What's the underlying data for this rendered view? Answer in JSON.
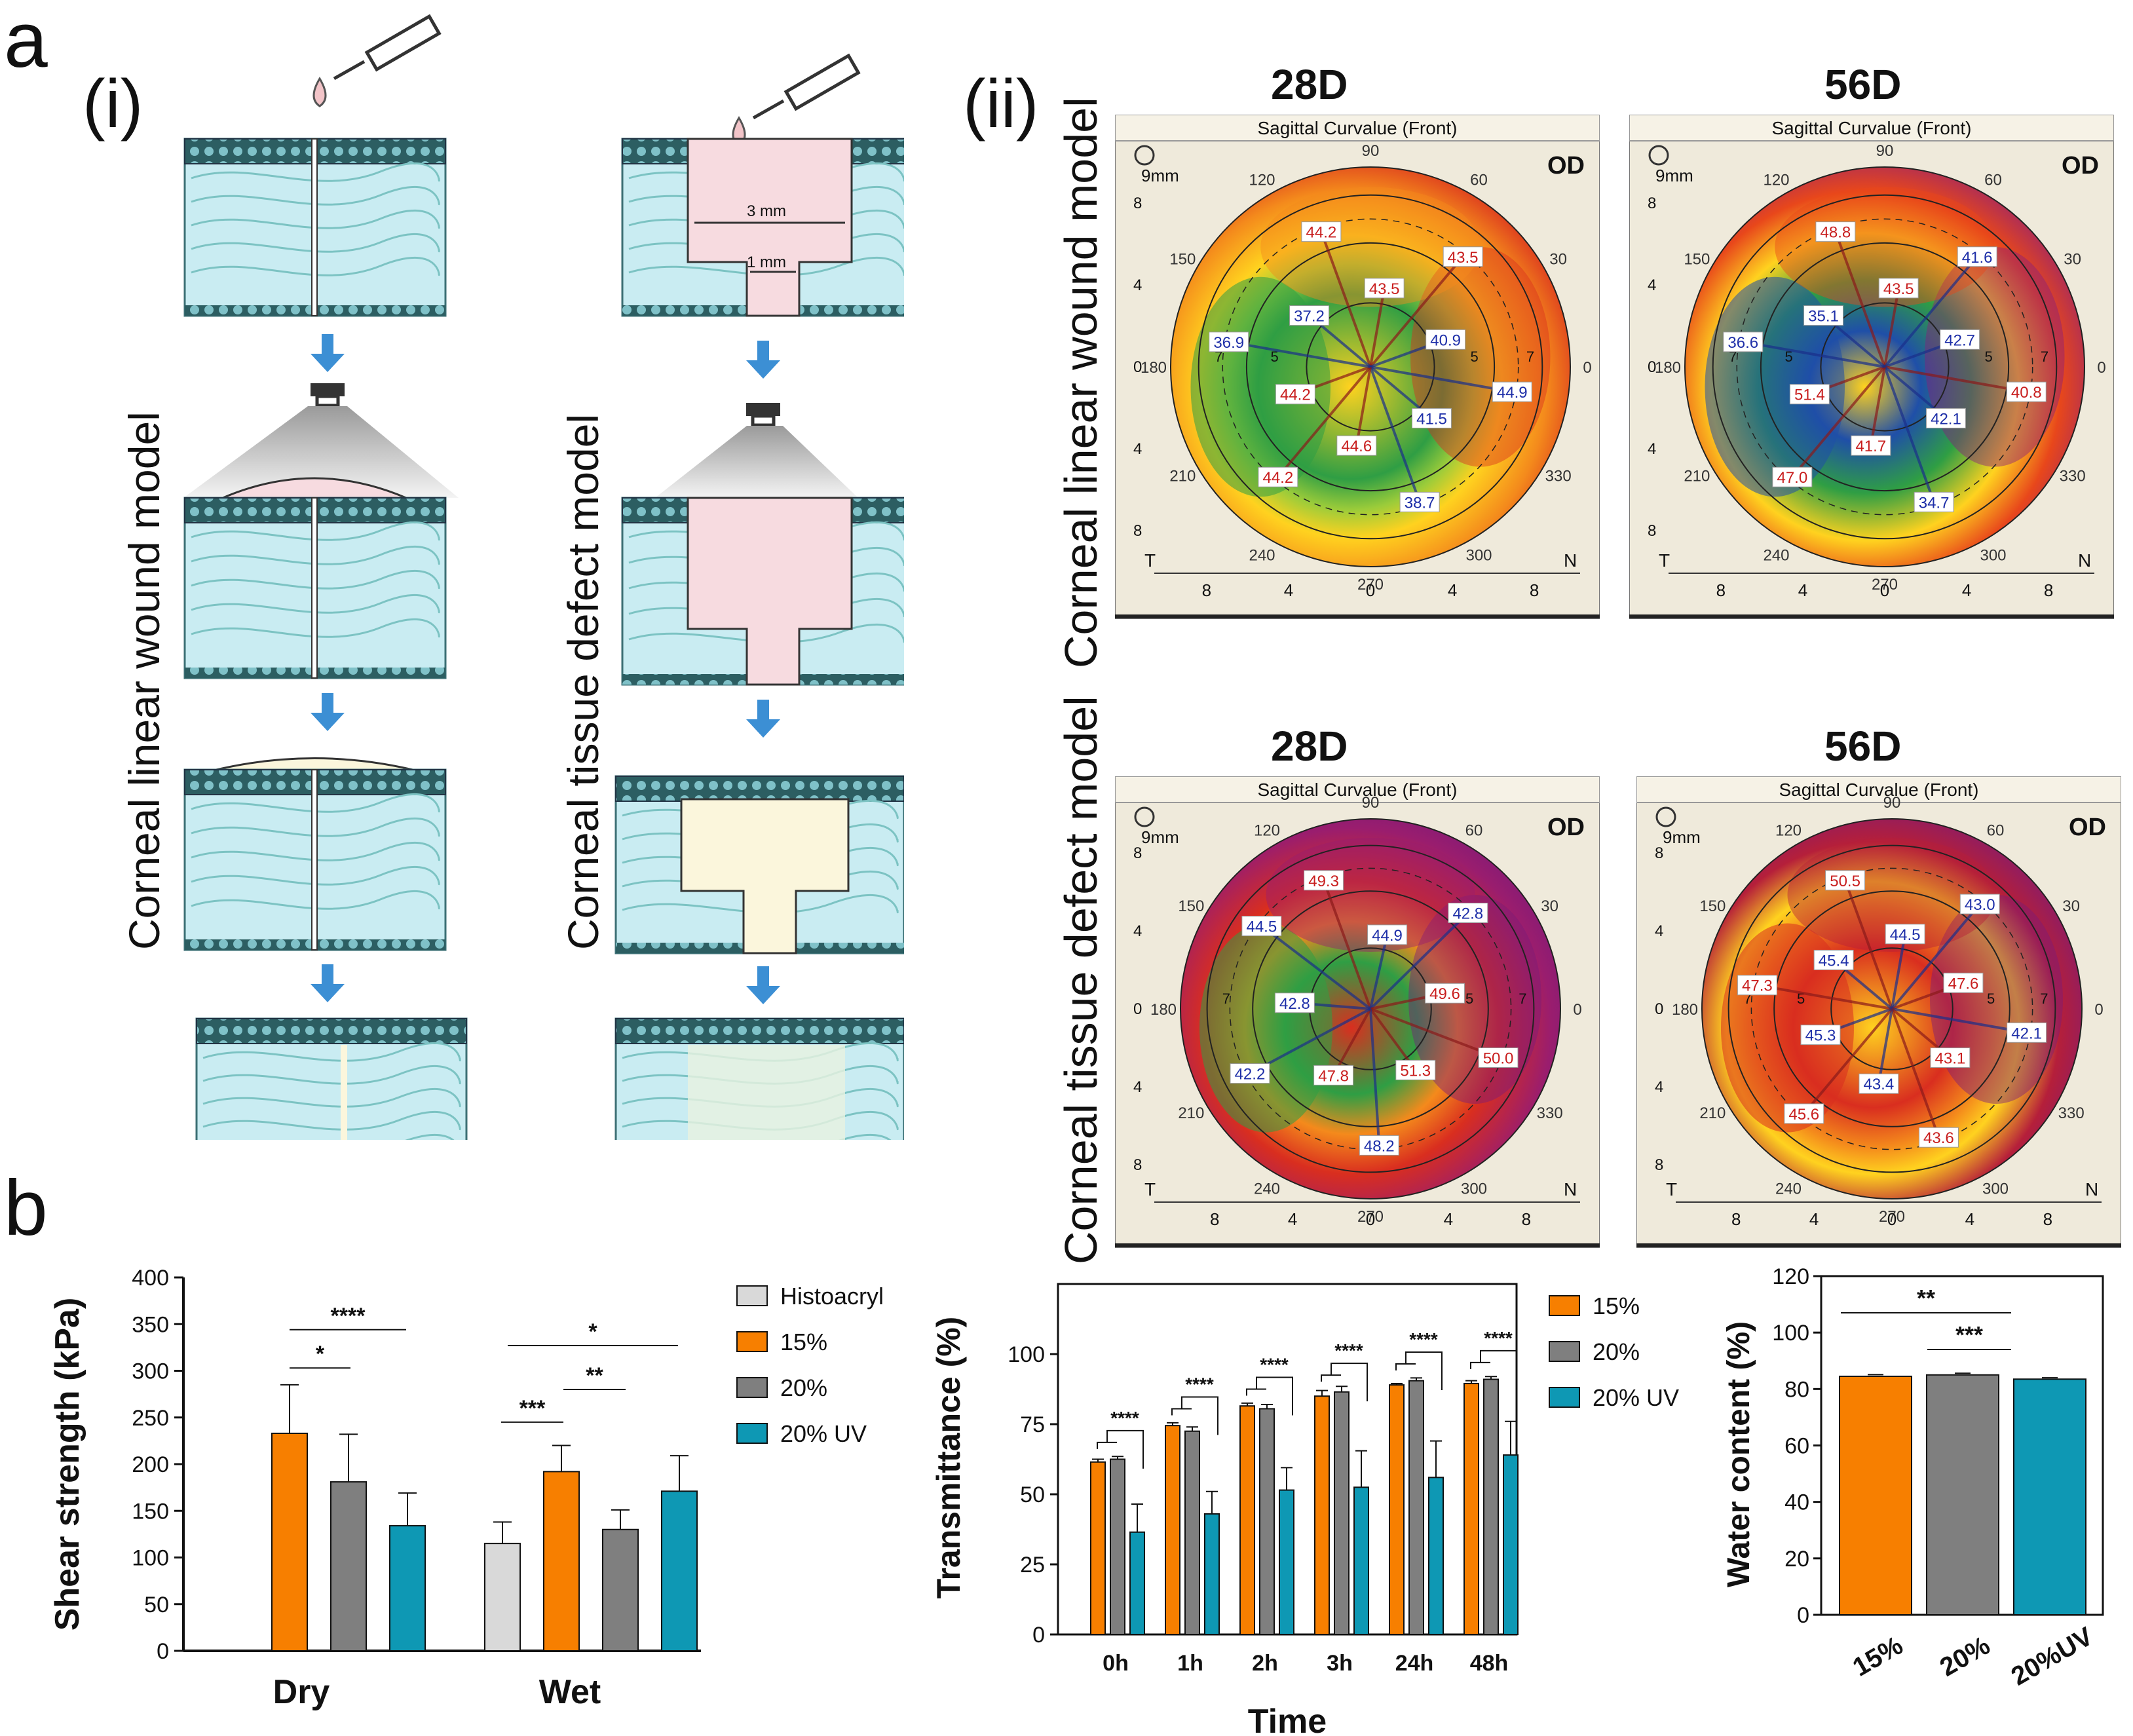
{
  "panels": {
    "a": "a",
    "b": "b",
    "i": "(i)",
    "ii": "(ii)"
  },
  "schematic": {
    "linear_label": "Corneal linear wound model",
    "defect_label": "Corneal tissue defect model",
    "dim_outer": "3 mm",
    "dim_inner": "1 mm"
  },
  "maps": {
    "row_labels": [
      "Corneal linear wound model",
      "Corneal tissue defect model"
    ],
    "header": "Sagittal Curvalue (Front)",
    "eye": "OD",
    "zoom": "9mm",
    "temporal": "T",
    "nasal": "N",
    "angles": [
      "90",
      "60",
      "30",
      "0",
      "330",
      "300",
      "270",
      "240",
      "210",
      "180",
      "150",
      "120"
    ],
    "axis_ticks": [
      "8",
      "4",
      "0",
      "4",
      "8"
    ],
    "ring_labels": [
      "5",
      "7"
    ],
    "items": [
      {
        "day": "28D",
        "labels": [
          {
            "t": "44.2",
            "c": "r"
          },
          {
            "t": "43.5",
            "c": "r"
          },
          {
            "t": "43.5",
            "c": "r"
          },
          {
            "t": "40.9",
            "c": "b"
          },
          {
            "t": "44.9",
            "c": "b"
          },
          {
            "t": "41.5",
            "c": "b"
          },
          {
            "t": "38.7",
            "c": "b"
          },
          {
            "t": "44.6",
            "c": "r"
          },
          {
            "t": "44.2",
            "c": "r"
          },
          {
            "t": "44.2",
            "c": "r"
          },
          {
            "t": "36.9",
            "c": "b"
          },
          {
            "t": "37.2",
            "c": "b"
          }
        ]
      },
      {
        "day": "56D",
        "labels": [
          {
            "t": "48.8",
            "c": "r"
          },
          {
            "t": "43.5",
            "c": "r"
          },
          {
            "t": "41.6",
            "c": "b"
          },
          {
            "t": "42.7",
            "c": "b"
          },
          {
            "t": "40.8",
            "c": "r"
          },
          {
            "t": "42.1",
            "c": "b"
          },
          {
            "t": "34.7",
            "c": "b"
          },
          {
            "t": "41.7",
            "c": "r"
          },
          {
            "t": "47.0",
            "c": "r"
          },
          {
            "t": "51.4",
            "c": "r"
          },
          {
            "t": "36.6",
            "c": "b"
          },
          {
            "t": "35.1",
            "c": "b"
          }
        ]
      },
      {
        "day": "28D",
        "labels": [
          {
            "t": "49.3",
            "c": "r"
          },
          {
            "t": "44.9",
            "c": "b"
          },
          {
            "t": "42.8",
            "c": "b"
          },
          {
            "t": "49.6",
            "c": "r"
          },
          {
            "t": "50.0",
            "c": "r"
          },
          {
            "t": "51.3",
            "c": "r"
          },
          {
            "t": "48.2",
            "c": "b"
          },
          {
            "t": "47.8",
            "c": "r"
          },
          {
            "t": "42.2",
            "c": "b"
          },
          {
            "t": "42.8",
            "c": "b"
          },
          {
            "t": "44.5",
            "c": "b"
          }
        ]
      },
      {
        "day": "56D",
        "labels": [
          {
            "t": "50.5",
            "c": "r"
          },
          {
            "t": "44.5",
            "c": "b"
          },
          {
            "t": "43.0",
            "c": "b"
          },
          {
            "t": "47.6",
            "c": "r"
          },
          {
            "t": "42.1",
            "c": "b"
          },
          {
            "t": "43.1",
            "c": "r"
          },
          {
            "t": "43.6",
            "c": "r"
          },
          {
            "t": "43.4",
            "c": "b"
          },
          {
            "t": "45.6",
            "c": "r"
          },
          {
            "t": "45.3",
            "c": "b"
          },
          {
            "t": "47.3",
            "c": "r"
          },
          {
            "t": "45.4",
            "c": "b"
          }
        ]
      }
    ]
  },
  "colors": {
    "orange": "#f77f00",
    "gray": "#7f7f7f",
    "light": "#d9d9d9",
    "teal": "#0e98b4"
  },
  "chart_data": [
    {
      "type": "bar",
      "title": "",
      "xlabel": "",
      "ylabel": "Shear strength (kPa)",
      "ylim": [
        0,
        400
      ],
      "yticks": [
        "0",
        "50",
        "100",
        "150",
        "200",
        "250",
        "300",
        "350",
        "400"
      ],
      "categories": [
        "Dry",
        "Wet"
      ],
      "series": [
        {
          "name": "Histoacryl",
          "values": [
            null,
            115
          ],
          "errors": [
            null,
            23
          ]
        },
        {
          "name": "15%",
          "values": [
            233,
            192
          ],
          "errors": [
            52,
            28
          ]
        },
        {
          "name": "20%",
          "values": [
            181,
            130
          ],
          "errors": [
            51,
            21
          ]
        },
        {
          "name": "20% UV",
          "values": [
            134,
            171
          ],
          "errors": [
            35,
            38
          ]
        }
      ],
      "significance": [
        "****",
        "*",
        "*",
        "***",
        "**"
      ]
    },
    {
      "type": "bar",
      "title": "",
      "xlabel": "Time",
      "ylabel": "Transmittance (%)",
      "ylim": [
        0,
        125
      ],
      "yticks": [
        "0",
        "25",
        "50",
        "75",
        "100"
      ],
      "categories": [
        "0h",
        "1h",
        "2h",
        "3h",
        "24h",
        "48h"
      ],
      "series": [
        {
          "name": "15%",
          "values": [
            61.5,
            74.5,
            81.5,
            85.0,
            89.0,
            89.5
          ],
          "errors": [
            1,
            1,
            1,
            2,
            0.5,
            1
          ]
        },
        {
          "name": "20%",
          "values": [
            62.5,
            72.5,
            80.5,
            86.5,
            90.5,
            91.0
          ],
          "errors": [
            1,
            1.5,
            1.5,
            2,
            1,
            1
          ]
        },
        {
          "name": "20% UV",
          "values": [
            36.5,
            43.0,
            51.5,
            52.5,
            56.0,
            64.0
          ],
          "errors": [
            10,
            8,
            8,
            13,
            13,
            12
          ]
        }
      ],
      "significance": [
        "****",
        "****",
        "****",
        "****",
        "****",
        "****"
      ]
    },
    {
      "type": "bar",
      "title": "",
      "xlabel": "",
      "ylabel": "Water content (%)",
      "ylim": [
        0,
        120
      ],
      "yticks": [
        "0",
        "20",
        "40",
        "60",
        "80",
        "100",
        "120"
      ],
      "categories": [
        "15%",
        "20%",
        "20%UV"
      ],
      "values": [
        84.5,
        85.0,
        83.5
      ],
      "errors": [
        0.6,
        0.6,
        0.5
      ],
      "significance": [
        "**",
        "***"
      ]
    }
  ]
}
